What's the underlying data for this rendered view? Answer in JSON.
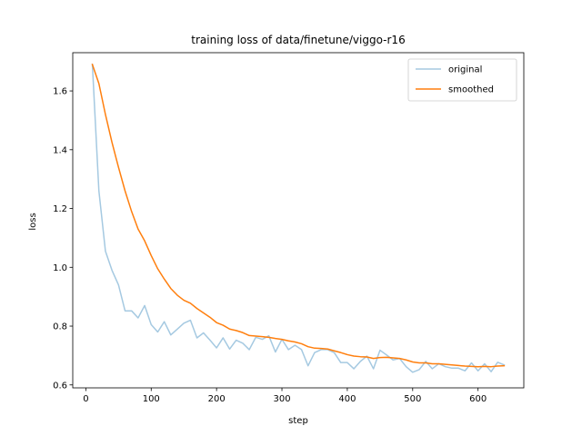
{
  "chart_data": {
    "type": "line",
    "title": "training loss of data/finetune/viggo-r16",
    "xlabel": "step",
    "ylabel": "loss",
    "xlim": [
      -20,
      670
    ],
    "ylim": [
      0.59,
      1.73
    ],
    "xticks": [
      0,
      100,
      200,
      300,
      400,
      500,
      600
    ],
    "yticks": [
      0.6,
      0.8,
      1.0,
      1.2,
      1.4,
      1.6
    ],
    "grid": false,
    "legend": "top-right",
    "x": [
      10,
      20,
      30,
      40,
      50,
      60,
      70,
      80,
      90,
      100,
      110,
      120,
      130,
      140,
      150,
      160,
      170,
      180,
      190,
      200,
      210,
      220,
      230,
      240,
      250,
      260,
      270,
      280,
      290,
      300,
      310,
      320,
      330,
      340,
      350,
      360,
      370,
      380,
      390,
      400,
      410,
      420,
      430,
      440,
      450,
      460,
      470,
      480,
      490,
      500,
      510,
      520,
      530,
      540,
      550,
      560,
      570,
      580,
      590,
      600,
      610,
      620,
      630,
      640
    ],
    "series": [
      {
        "name": "original",
        "color": "#1f77b4",
        "alpha": 0.4,
        "values": [
          1.69,
          1.26,
          1.055,
          0.99,
          0.94,
          0.852,
          0.852,
          0.828,
          0.87,
          0.805,
          0.78,
          0.815,
          0.77,
          0.79,
          0.81,
          0.82,
          0.76,
          0.777,
          0.752,
          0.726,
          0.76,
          0.722,
          0.752,
          0.742,
          0.72,
          0.762,
          0.755,
          0.767,
          0.712,
          0.755,
          0.72,
          0.735,
          0.72,
          0.665,
          0.71,
          0.72,
          0.72,
          0.71,
          0.676,
          0.676,
          0.655,
          0.68,
          0.698,
          0.655,
          0.718,
          0.702,
          0.685,
          0.69,
          0.662,
          0.643,
          0.652,
          0.68,
          0.655,
          0.672,
          0.662,
          0.657,
          0.657,
          0.648,
          0.675,
          0.648,
          0.672,
          0.645,
          0.677,
          0.668
        ]
      },
      {
        "name": "smoothed",
        "color": "#ff7f0e",
        "alpha": 1,
        "values": [
          1.69,
          1.625,
          1.52,
          1.425,
          1.34,
          1.26,
          1.19,
          1.13,
          1.09,
          1.04,
          0.995,
          0.96,
          0.928,
          0.905,
          0.888,
          0.878,
          0.86,
          0.845,
          0.83,
          0.812,
          0.803,
          0.79,
          0.785,
          0.778,
          0.768,
          0.766,
          0.764,
          0.762,
          0.758,
          0.755,
          0.75,
          0.746,
          0.74,
          0.73,
          0.725,
          0.724,
          0.722,
          0.716,
          0.71,
          0.703,
          0.698,
          0.696,
          0.695,
          0.69,
          0.693,
          0.694,
          0.692,
          0.69,
          0.685,
          0.678,
          0.675,
          0.675,
          0.672,
          0.672,
          0.67,
          0.668,
          0.666,
          0.664,
          0.663,
          0.662,
          0.663,
          0.662,
          0.664,
          0.665
        ]
      }
    ]
  }
}
